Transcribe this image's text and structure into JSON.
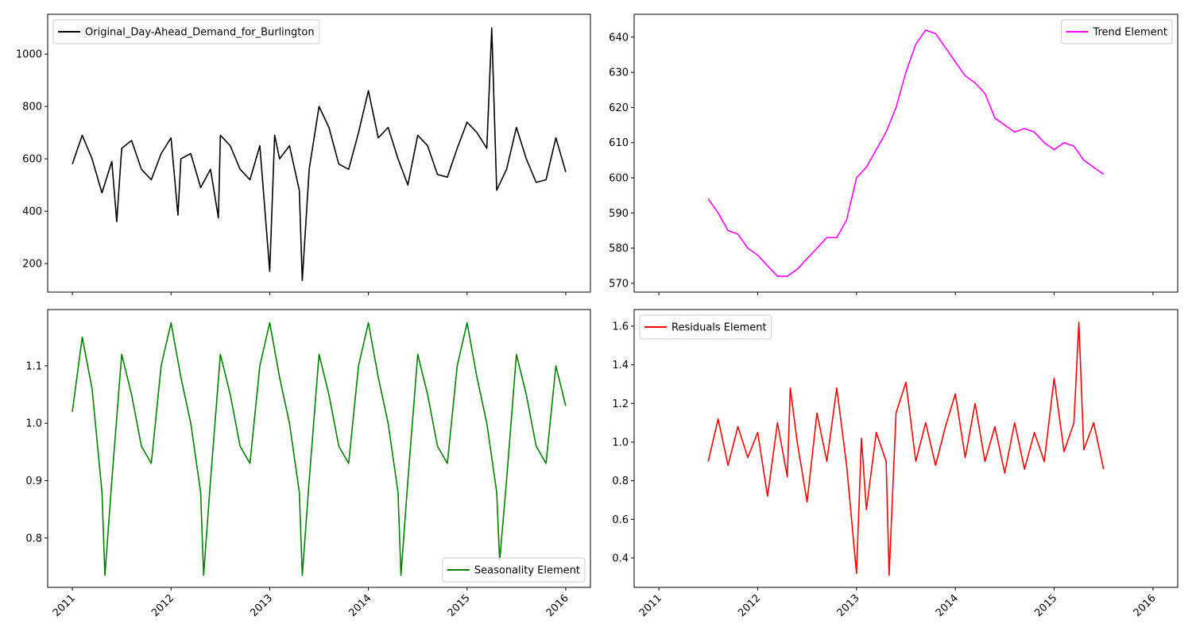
{
  "chart_data": [
    {
      "type": "line",
      "legend": "upper left",
      "xlim": [
        2010.75,
        2016.25
      ],
      "xticks": [
        2011,
        2012,
        2013,
        2014,
        2015,
        2016
      ],
      "ylim": [
        91,
        1152
      ],
      "yticks": [
        200,
        400,
        600,
        800,
        1000
      ],
      "x": [
        2011.0,
        2011.1,
        2011.2,
        2011.3,
        2011.4,
        2011.45,
        2011.5,
        2011.6,
        2011.7,
        2011.8,
        2011.9,
        2012.0,
        2012.07,
        2012.1,
        2012.2,
        2012.3,
        2012.4,
        2012.48,
        2012.5,
        2012.6,
        2012.7,
        2012.8,
        2012.9,
        2013.0,
        2013.05,
        2013.1,
        2013.2,
        2013.3,
        2013.33,
        2013.4,
        2013.5,
        2013.6,
        2013.7,
        2013.8,
        2013.9,
        2014.0,
        2014.1,
        2014.2,
        2014.3,
        2014.4,
        2014.5,
        2014.6,
        2014.7,
        2014.8,
        2014.9,
        2015.0,
        2015.1,
        2015.2,
        2015.25,
        2015.3,
        2015.4,
        2015.5,
        2015.6,
        2015.7,
        2015.8,
        2015.9,
        2016.0
      ],
      "series": [
        {
          "name": "Original_Day-Ahead_Demand_for_Burlington",
          "color": "#000000",
          "values": [
            580,
            690,
            600,
            470,
            590,
            360,
            640,
            670,
            560,
            520,
            620,
            680,
            385,
            600,
            620,
            490,
            560,
            375,
            690,
            650,
            560,
            520,
            650,
            170,
            690,
            600,
            650,
            480,
            135,
            560,
            800,
            720,
            580,
            560,
            700,
            860,
            680,
            720,
            600,
            500,
            690,
            650,
            540,
            530,
            640,
            740,
            700,
            640,
            1100,
            480,
            560,
            720,
            600,
            510,
            520,
            680,
            550
          ]
        }
      ]
    },
    {
      "type": "line",
      "legend": "upper right",
      "xlim": [
        2010.75,
        2016.25
      ],
      "xticks": [
        2011,
        2012,
        2013,
        2014,
        2015,
        2016
      ],
      "ylim": [
        567.5,
        646.5
      ],
      "yticks": [
        570,
        580,
        590,
        600,
        610,
        620,
        630,
        640
      ],
      "x": [
        2011.5,
        2011.6,
        2011.7,
        2011.8,
        2011.9,
        2012.0,
        2012.1,
        2012.2,
        2012.3,
        2012.4,
        2012.5,
        2012.6,
        2012.7,
        2012.8,
        2012.9,
        2013.0,
        2013.1,
        2013.2,
        2013.3,
        2013.4,
        2013.5,
        2013.6,
        2013.7,
        2013.8,
        2013.9,
        2014.0,
        2014.1,
        2014.2,
        2014.3,
        2014.4,
        2014.5,
        2014.6,
        2014.7,
        2014.8,
        2014.9,
        2015.0,
        2015.1,
        2015.2,
        2015.3,
        2015.4,
        2015.5
      ],
      "series": [
        {
          "name": "Trend Element",
          "color": "#ff00ff",
          "values": [
            594,
            590,
            585,
            584,
            580,
            578,
            575,
            572,
            572,
            574,
            577,
            580,
            583,
            583,
            588,
            600,
            603,
            608,
            613,
            620,
            630,
            638,
            642,
            641,
            637,
            633,
            629,
            627,
            624,
            617,
            615,
            613,
            614,
            613,
            610,
            608,
            610,
            609,
            605,
            603,
            601
          ]
        }
      ]
    },
    {
      "type": "line",
      "legend": "lower right",
      "xlim": [
        2010.75,
        2016.25
      ],
      "xticks": [
        2011,
        2012,
        2013,
        2014,
        2015,
        2016
      ],
      "ylim": [
        0.714,
        1.198
      ],
      "yticks": [
        0.8,
        0.9,
        {
          "value": 1,
          "label": "1.0"
        },
        1.1
      ],
      "x": [
        2011.0,
        2011.1,
        2011.2,
        2011.3,
        2011.33,
        2011.4,
        2011.5,
        2011.6,
        2011.7,
        2011.8,
        2011.9,
        2012.0,
        2012.1,
        2012.2,
        2012.3,
        2012.33,
        2012.4,
        2012.5,
        2012.6,
        2012.7,
        2012.8,
        2012.9,
        2013.0,
        2013.1,
        2013.2,
        2013.3,
        2013.33,
        2013.4,
        2013.5,
        2013.6,
        2013.7,
        2013.8,
        2013.9,
        2014.0,
        2014.1,
        2014.2,
        2014.3,
        2014.33,
        2014.4,
        2014.5,
        2014.6,
        2014.7,
        2014.8,
        2014.9,
        2015.0,
        2015.1,
        2015.2,
        2015.3,
        2015.33,
        2015.4,
        2015.5,
        2015.6,
        2015.7,
        2015.8,
        2015.9,
        2016.0
      ],
      "series": [
        {
          "name": "Seasonality Element",
          "color": "#008000",
          "values": [
            1.02,
            1.15,
            1.06,
            0.88,
            0.735,
            0.9,
            1.12,
            1.05,
            0.96,
            0.93,
            1.1,
            1.175,
            1.08,
            1.0,
            0.88,
            0.735,
            0.9,
            1.12,
            1.05,
            0.96,
            0.93,
            1.1,
            1.175,
            1.08,
            1.0,
            0.88,
            0.735,
            0.9,
            1.12,
            1.05,
            0.96,
            0.93,
            1.1,
            1.175,
            1.08,
            1.0,
            0.88,
            0.735,
            0.9,
            1.12,
            1.05,
            0.96,
            0.93,
            1.1,
            1.175,
            1.08,
            1.0,
            0.88,
            0.76,
            0.9,
            1.12,
            1.05,
            0.96,
            0.93,
            1.1,
            1.03
          ]
        }
      ]
    },
    {
      "type": "line",
      "legend": "upper left",
      "xlim": [
        2010.75,
        2016.25
      ],
      "xticks": [
        2011,
        2012,
        2013,
        2014,
        2015,
        2016
      ],
      "ylim": [
        0.248,
        1.686
      ],
      "yticks": [
        0.4,
        0.6,
        0.8,
        {
          "value": 1,
          "label": "1.0"
        },
        1.2,
        1.4,
        1.6
      ],
      "x": [
        2011.5,
        2011.6,
        2011.7,
        2011.8,
        2011.9,
        2012.0,
        2012.1,
        2012.2,
        2012.3,
        2012.33,
        2012.4,
        2012.5,
        2012.6,
        2012.7,
        2012.8,
        2012.9,
        2013.0,
        2013.05,
        2013.1,
        2013.2,
        2013.3,
        2013.33,
        2013.4,
        2013.5,
        2013.6,
        2013.7,
        2013.8,
        2013.9,
        2014.0,
        2014.1,
        2014.2,
        2014.3,
        2014.4,
        2014.5,
        2014.6,
        2014.7,
        2014.8,
        2014.9,
        2015.0,
        2015.1,
        2015.2,
        2015.25,
        2015.3,
        2015.4,
        2015.5
      ],
      "series": [
        {
          "name": "Residuals Element",
          "color": "#ff0000",
          "values": [
            0.9,
            1.12,
            0.88,
            1.08,
            0.92,
            1.05,
            0.72,
            1.1,
            0.82,
            1.28,
            1.0,
            0.69,
            1.15,
            0.9,
            1.28,
            0.88,
            0.32,
            1.02,
            0.65,
            1.05,
            0.9,
            0.31,
            1.15,
            1.31,
            0.9,
            1.1,
            0.88,
            1.08,
            1.25,
            0.92,
            1.2,
            0.9,
            1.08,
            0.84,
            1.1,
            0.86,
            1.05,
            0.9,
            1.33,
            0.95,
            1.1,
            1.62,
            0.96,
            1.1,
            0.86
          ]
        }
      ]
    }
  ]
}
